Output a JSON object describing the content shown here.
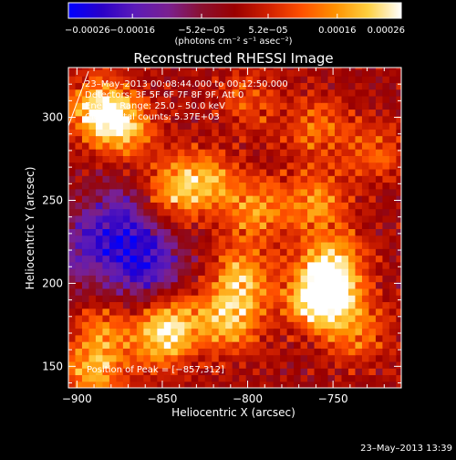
{
  "chart_data": {
    "type": "heatmap",
    "title": "Reconstructed RHESSI Image",
    "xlabel": "Heliocentric X (arcsec)",
    "ylabel": "Heliocentric Y (arcsec)",
    "xlim": [
      -905,
      -710
    ],
    "ylim": [
      137,
      330
    ],
    "x_ticks": [
      -900,
      -850,
      -800,
      -750
    ],
    "x_tick_labels": [
      "−900",
      "−850",
      "−800",
      "−750"
    ],
    "y_ticks": [
      150,
      200,
      250,
      300
    ],
    "y_tick_labels": [
      "150",
      "200",
      "250",
      "300"
    ],
    "colorbar": {
      "ticks": [
        -0.00026,
        -0.00016,
        -5.2e-05,
        5.2e-05,
        0.00016,
        0.00026
      ],
      "tick_labels": [
        "−0.00026",
        "−0.00016",
        "−5.2e−05",
        "5.2e−05",
        "0.00016",
        "0.00026"
      ],
      "unit_label": "(photons cm⁻² s⁻¹ asec⁻²)",
      "colors": [
        "#0000ff",
        "#2a00c8",
        "#5c1bb8",
        "#7a2090",
        "#8a1030",
        "#9a0000",
        "#d02000",
        "#ff5000",
        "#ff9000",
        "#ffd040",
        "#ffffff"
      ]
    },
    "annotations": [
      "23–May–2013 00:08:44.000 to 00:12:50.000",
      "Detectors: 3F 5F 6F 7F 8F 9F, Att 0",
      "Energy Range: 25.0 – 50.0 keV",
      "Clean    Total counts: 5.37E+03"
    ],
    "peak_label": "Position of Peak = [−857,312]",
    "peak": [
      -857,
      312
    ],
    "emission_features": [
      {
        "x": -888,
        "y": 305,
        "amplitude": 1.0
      },
      {
        "x": -872,
        "y": 295,
        "amplitude": 0.8
      },
      {
        "x": -845,
        "y": 255,
        "amplitude": 0.7
      },
      {
        "x": -825,
        "y": 262,
        "amplitude": 0.75
      },
      {
        "x": -795,
        "y": 245,
        "amplitude": 0.7
      },
      {
        "x": -803,
        "y": 205,
        "amplitude": 0.85
      },
      {
        "x": -810,
        "y": 178,
        "amplitude": 0.9
      },
      {
        "x": -843,
        "y": 180,
        "amplitude": 0.65
      },
      {
        "x": -850,
        "y": 165,
        "amplitude": 0.7
      },
      {
        "x": -885,
        "y": 170,
        "amplitude": 0.6
      },
      {
        "x": -890,
        "y": 145,
        "amplitude": 0.75
      },
      {
        "x": -760,
        "y": 250,
        "amplitude": 0.7
      },
      {
        "x": -750,
        "y": 215,
        "amplitude": 0.75
      },
      {
        "x": -752,
        "y": 195,
        "amplitude": 0.9
      },
      {
        "x": -760,
        "y": 190,
        "amplitude": 0.85
      },
      {
        "x": -760,
        "y": 295,
        "amplitude": 0.55
      },
      {
        "x": -800,
        "y": 310,
        "amplitude": 0.45
      },
      {
        "x": -735,
        "y": 170,
        "amplitude": 0.55
      },
      {
        "x": -725,
        "y": 280,
        "amplitude": 0.5
      }
    ],
    "negative_features": [
      {
        "x": -860,
        "y": 212,
        "amplitude": 0.9
      },
      {
        "x": -875,
        "y": 240,
        "amplitude": 0.6
      },
      {
        "x": -895,
        "y": 220,
        "amplitude": 0.5
      }
    ]
  },
  "footer": {
    "timestamp": "23–May–2013 13:39"
  }
}
